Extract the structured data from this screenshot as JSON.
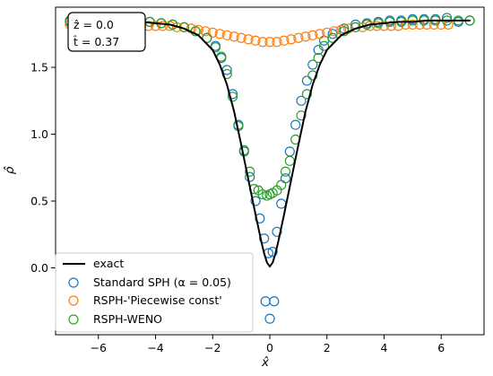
{
  "chart_data": {
    "type": "scatter",
    "xlabel": "x̂",
    "ylabel": "ρ̂",
    "xlim": [
      -7.5,
      7.5
    ],
    "ylim": [
      -0.5,
      1.95
    ],
    "xticks": [
      -6,
      -4,
      -2,
      0,
      2,
      4,
      6
    ],
    "yticks": [
      0.0,
      0.5,
      1.0,
      1.5
    ],
    "xtick_labels": [
      "−6",
      "−4",
      "−2",
      "0",
      "2",
      "4",
      "6"
    ],
    "ytick_labels": [
      "0.0",
      "0.5",
      "1.0",
      "1.5"
    ],
    "annotation": {
      "line1": "ẑ = 0.0",
      "line2": "t̂ = 0.37"
    },
    "legend_position": "lower-left",
    "series": [
      {
        "name": "exact",
        "kind": "line",
        "color": "#000000",
        "x": [
          -7.0,
          -6.5,
          -6.0,
          -5.5,
          -5.0,
          -4.5,
          -4.0,
          -3.5,
          -3.0,
          -2.5,
          -2.0,
          -1.75,
          -1.5,
          -1.25,
          -1.0,
          -0.75,
          -0.5,
          -0.4,
          -0.3,
          -0.2,
          -0.1,
          0.0,
          0.1,
          0.2,
          0.3,
          0.4,
          0.5,
          0.75,
          1.0,
          1.25,
          1.5,
          1.75,
          2.0,
          2.5,
          3.0,
          3.5,
          4.0,
          4.5,
          5.0,
          5.5,
          6.0,
          6.5,
          7.0
        ],
        "y": [
          1.85,
          1.85,
          1.85,
          1.85,
          1.84,
          1.84,
          1.83,
          1.82,
          1.79,
          1.74,
          1.63,
          1.52,
          1.37,
          1.17,
          0.92,
          0.66,
          0.4,
          0.3,
          0.2,
          0.11,
          0.04,
          0.01,
          0.04,
          0.11,
          0.2,
          0.3,
          0.4,
          0.66,
          0.92,
          1.17,
          1.37,
          1.52,
          1.63,
          1.74,
          1.79,
          1.82,
          1.83,
          1.84,
          1.84,
          1.85,
          1.85,
          1.85,
          1.85
        ]
      },
      {
        "name": "Standard SPH (α = 0.05)",
        "kind": "markers",
        "color": "#1f77b4",
        "x": [
          -7.0,
          -6.6,
          -6.2,
          -5.8,
          -5.4,
          -5.0,
          -4.6,
          -4.2,
          -3.8,
          -3.4,
          -3.0,
          -2.6,
          -2.2,
          -1.9,
          -1.7,
          -1.5,
          -1.3,
          -1.1,
          -0.9,
          -0.7,
          -0.5,
          -0.35,
          -0.2,
          -0.05,
          0.1,
          0.25,
          0.4,
          0.55,
          0.7,
          0.9,
          1.1,
          1.3,
          1.5,
          1.7,
          1.9,
          2.2,
          2.6,
          3.0,
          3.4,
          3.8,
          4.2,
          4.6,
          5.0,
          5.4,
          5.8,
          6.2,
          6.6,
          7.0,
          -0.15,
          0.15,
          0.0
        ],
        "y": [
          1.84,
          1.86,
          1.86,
          1.86,
          1.85,
          1.85,
          1.84,
          1.84,
          1.83,
          1.82,
          1.8,
          1.77,
          1.72,
          1.66,
          1.57,
          1.48,
          1.3,
          1.07,
          0.87,
          0.68,
          0.5,
          0.37,
          0.22,
          0.11,
          0.12,
          0.27,
          0.48,
          0.67,
          0.87,
          1.07,
          1.25,
          1.4,
          1.52,
          1.63,
          1.7,
          1.75,
          1.79,
          1.82,
          1.83,
          1.84,
          1.85,
          1.85,
          1.86,
          1.86,
          1.86,
          1.87,
          1.84,
          1.85,
          -0.25,
          -0.25,
          -0.38
        ]
      },
      {
        "name": "RSPH-'Piecewise const'",
        "kind": "markers",
        "color": "#ff7f0e",
        "x": [
          -7.0,
          -6.75,
          -6.5,
          -6.25,
          -6.0,
          -5.75,
          -5.5,
          -5.25,
          -5.0,
          -4.75,
          -4.5,
          -4.25,
          -4.0,
          -3.75,
          -3.5,
          -3.25,
          -3.0,
          -2.75,
          -2.5,
          -2.25,
          -2.0,
          -1.75,
          -1.5,
          -1.25,
          -1.0,
          -0.75,
          -0.5,
          -0.25,
          0.0,
          0.25,
          0.5,
          0.75,
          1.0,
          1.25,
          1.5,
          1.75,
          2.0,
          2.25,
          2.5,
          2.75,
          3.0,
          3.25,
          3.5,
          3.75,
          4.0,
          4.25,
          4.5,
          4.75,
          5.0,
          5.25,
          5.5,
          5.75,
          6.0,
          6.25
        ],
        "y": [
          1.82,
          1.82,
          1.82,
          1.82,
          1.82,
          1.82,
          1.82,
          1.82,
          1.82,
          1.82,
          1.81,
          1.81,
          1.81,
          1.81,
          1.81,
          1.8,
          1.8,
          1.79,
          1.78,
          1.77,
          1.76,
          1.75,
          1.74,
          1.73,
          1.72,
          1.71,
          1.7,
          1.69,
          1.69,
          1.69,
          1.7,
          1.71,
          1.72,
          1.73,
          1.74,
          1.75,
          1.76,
          1.77,
          1.78,
          1.79,
          1.8,
          1.8,
          1.81,
          1.81,
          1.81,
          1.81,
          1.81,
          1.82,
          1.82,
          1.82,
          1.82,
          1.82,
          1.82,
          1.82
        ]
      },
      {
        "name": "RSPH-WENO",
        "kind": "markers",
        "color": "#2ca02c",
        "x": [
          -7.0,
          -6.6,
          -6.2,
          -5.8,
          -5.4,
          -5.0,
          -4.6,
          -4.2,
          -3.8,
          -3.4,
          -3.0,
          -2.6,
          -2.2,
          -1.9,
          -1.7,
          -1.5,
          -1.3,
          -1.1,
          -0.9,
          -0.7,
          -0.55,
          -0.4,
          -0.25,
          -0.1,
          0.0,
          0.1,
          0.25,
          0.4,
          0.55,
          0.7,
          0.9,
          1.1,
          1.3,
          1.5,
          1.7,
          1.9,
          2.2,
          2.6,
          3.0,
          3.4,
          3.8,
          4.2,
          4.6,
          5.0,
          5.4,
          5.8,
          6.2,
          6.6,
          7.0
        ],
        "y": [
          1.85,
          1.85,
          1.85,
          1.85,
          1.85,
          1.84,
          1.84,
          1.84,
          1.83,
          1.82,
          1.8,
          1.77,
          1.72,
          1.65,
          1.58,
          1.45,
          1.28,
          1.06,
          0.88,
          0.72,
          0.59,
          0.58,
          0.55,
          0.54,
          0.55,
          0.56,
          0.58,
          0.62,
          0.72,
          0.8,
          0.96,
          1.14,
          1.3,
          1.44,
          1.57,
          1.66,
          1.72,
          1.77,
          1.8,
          1.82,
          1.83,
          1.84,
          1.84,
          1.85,
          1.85,
          1.85,
          1.85,
          1.85,
          1.85
        ]
      }
    ]
  }
}
